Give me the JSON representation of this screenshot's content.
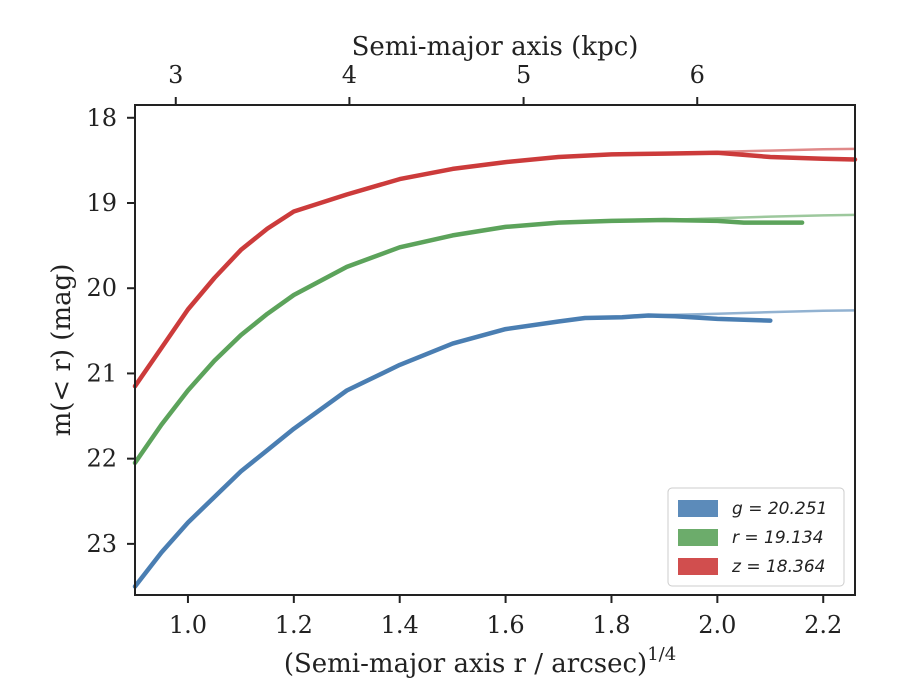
{
  "chart_data": {
    "type": "line",
    "xlabel": "(Semi-major axis r / arcsec)",
    "xlabel_sup": "1/4",
    "ylabel": "m(< r) (mag)",
    "top_xlabel": "Semi-major axis (kpc)",
    "xlim": [
      0.9,
      2.26
    ],
    "ylim": [
      23.6,
      17.85
    ],
    "x_ticks": [
      1.0,
      1.2,
      1.4,
      1.6,
      1.8,
      2.0,
      2.2
    ],
    "x_tick_labels": [
      "1.0",
      "1.2",
      "1.4",
      "1.6",
      "1.8",
      "2.0",
      "2.2"
    ],
    "y_ticks": [
      18,
      19,
      20,
      21,
      22,
      23
    ],
    "y_tick_labels": [
      "18",
      "19",
      "20",
      "21",
      "22",
      "23"
    ],
    "top_ticks": [
      3,
      4,
      5,
      6
    ],
    "top_tick_labels": [
      "3",
      "4",
      "5",
      "6"
    ],
    "top_tick_positions_x": [
      0.977,
      1.305,
      1.634,
      1.962
    ],
    "legend_position": "lower right",
    "series": [
      {
        "name": "g",
        "legend_label": "g = 20.251",
        "color": "#4a7eb2",
        "x": [
          0.9,
          0.95,
          1.0,
          1.05,
          1.1,
          1.15,
          1.2,
          1.3,
          1.4,
          1.5,
          1.6,
          1.7,
          1.75,
          1.82,
          1.87,
          1.92,
          2.0,
          2.1
        ],
        "y": [
          23.5,
          23.1,
          22.75,
          22.45,
          22.15,
          21.9,
          21.65,
          21.2,
          20.9,
          20.65,
          20.48,
          20.39,
          20.35,
          20.34,
          20.32,
          20.33,
          20.36,
          20.38
        ],
        "model_x": [
          1.87,
          2.0,
          2.1,
          2.2,
          2.26
        ],
        "model_y": [
          20.32,
          20.3,
          20.28,
          20.265,
          20.26
        ]
      },
      {
        "name": "r",
        "legend_label": "r = 19.134",
        "color": "#5ca35b",
        "x": [
          0.9,
          0.95,
          1.0,
          1.05,
          1.1,
          1.15,
          1.2,
          1.3,
          1.4,
          1.5,
          1.6,
          1.7,
          1.8,
          1.9,
          2.0,
          2.05,
          2.16
        ],
        "y": [
          22.05,
          21.6,
          21.2,
          20.85,
          20.55,
          20.3,
          20.08,
          19.75,
          19.52,
          19.38,
          19.28,
          19.23,
          19.21,
          19.2,
          19.21,
          19.23,
          19.23
        ],
        "model_x": [
          1.9,
          2.0,
          2.1,
          2.2,
          2.26
        ],
        "model_y": [
          19.2,
          19.18,
          19.16,
          19.145,
          19.14
        ]
      },
      {
        "name": "z",
        "legend_label": "z = 18.364",
        "color": "#cc3b3b",
        "x": [
          0.9,
          0.95,
          1.0,
          1.05,
          1.1,
          1.15,
          1.2,
          1.3,
          1.4,
          1.5,
          1.6,
          1.7,
          1.8,
          1.9,
          2.0,
          2.1,
          2.2,
          2.26
        ],
        "y": [
          21.15,
          20.7,
          20.25,
          19.88,
          19.55,
          19.3,
          19.1,
          18.9,
          18.72,
          18.6,
          18.52,
          18.46,
          18.43,
          18.42,
          18.41,
          18.46,
          18.48,
          18.49
        ],
        "model_x": [
          1.9,
          2.0,
          2.1,
          2.2,
          2.26
        ],
        "model_y": [
          18.42,
          18.4,
          18.385,
          18.37,
          18.365
        ]
      }
    ]
  }
}
